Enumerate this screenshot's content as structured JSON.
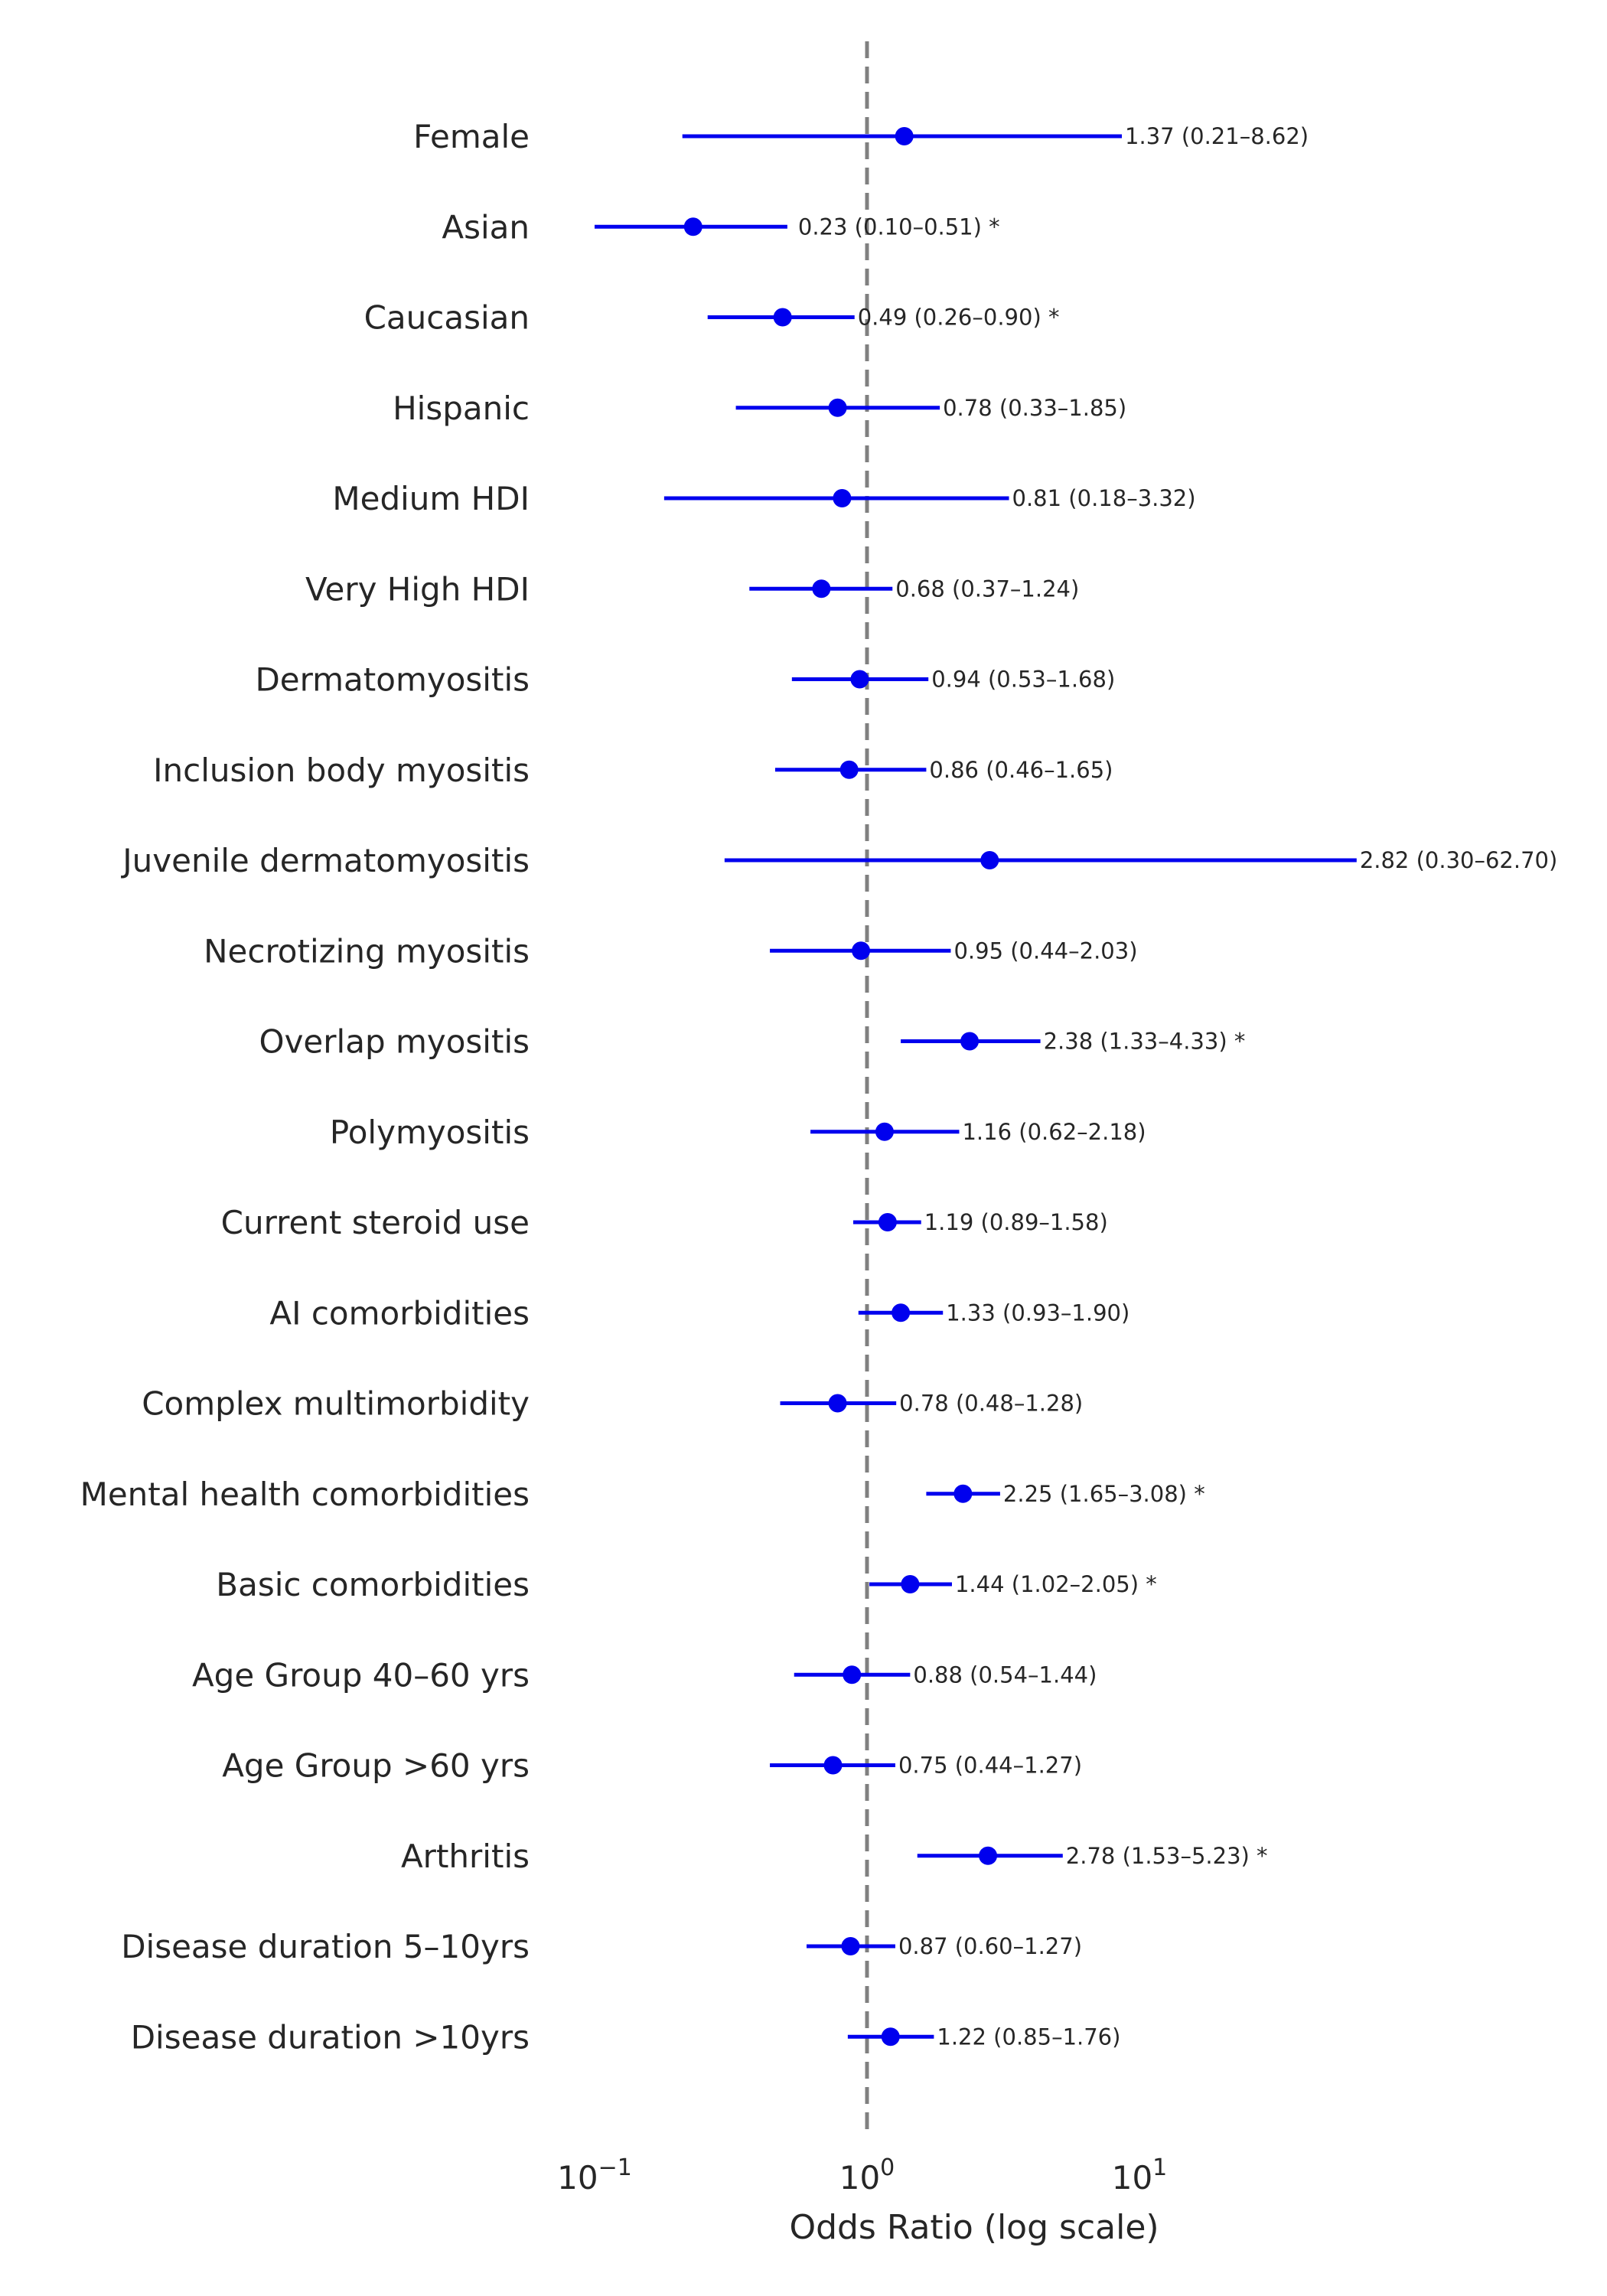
{
  "chart_data": {
    "type": "forest",
    "title": "",
    "xlabel": "Odds Ratio (log scale)",
    "ylabel": "",
    "xscale": "log",
    "xlim": [
      0.075,
      70
    ],
    "reference_line": 1,
    "grid": false,
    "legend": null,
    "colors": {
      "marker": "#0000ee",
      "reference_line": "#808080",
      "text": "#262626"
    },
    "x_ticks": [
      {
        "value": 0.1,
        "base": "10",
        "exp": "−1"
      },
      {
        "value": 1,
        "base": "10",
        "exp": "0"
      },
      {
        "value": 10,
        "base": "10",
        "exp": "1"
      }
    ],
    "rows": [
      {
        "label": "Female",
        "or": 1.37,
        "lo": 0.21,
        "hi": 8.62,
        "annotation": "1.37 (0.21–8.62)",
        "significant": false
      },
      {
        "label": "Asian",
        "or": 0.23,
        "lo": 0.1,
        "hi": 0.51,
        "annotation": "0.23 (0.10–0.51) *",
        "significant": true
      },
      {
        "label": "Caucasian",
        "or": 0.49,
        "lo": 0.26,
        "hi": 0.9,
        "annotation": "0.49 (0.26–0.90) *",
        "significant": true
      },
      {
        "label": "Hispanic",
        "or": 0.78,
        "lo": 0.33,
        "hi": 1.85,
        "annotation": "0.78 (0.33–1.85)",
        "significant": false
      },
      {
        "label": "Medium HDI",
        "or": 0.81,
        "lo": 0.18,
        "hi": 3.32,
        "annotation": "0.81 (0.18–3.32)",
        "significant": false
      },
      {
        "label": "Very High HDI",
        "or": 0.68,
        "lo": 0.37,
        "hi": 1.24,
        "annotation": "0.68 (0.37–1.24)",
        "significant": false
      },
      {
        "label": "Dermatomyositis",
        "or": 0.94,
        "lo": 0.53,
        "hi": 1.68,
        "annotation": "0.94 (0.53–1.68)",
        "significant": false
      },
      {
        "label": "Inclusion body myositis",
        "or": 0.86,
        "lo": 0.46,
        "hi": 1.65,
        "annotation": "0.86 (0.46–1.65)",
        "significant": false
      },
      {
        "label": "Juvenile dermatomyositis",
        "or": 2.82,
        "lo": 0.3,
        "hi": 62.7,
        "annotation": "2.82 (0.30–62.70)",
        "significant": false
      },
      {
        "label": "Necrotizing myositis",
        "or": 0.95,
        "lo": 0.44,
        "hi": 2.03,
        "annotation": "0.95 (0.44–2.03)",
        "significant": false
      },
      {
        "label": "Overlap myositis",
        "or": 2.38,
        "lo": 1.33,
        "hi": 4.33,
        "annotation": "2.38 (1.33–4.33) *",
        "significant": true
      },
      {
        "label": "Polymyositis",
        "or": 1.16,
        "lo": 0.62,
        "hi": 2.18,
        "annotation": "1.16 (0.62–2.18)",
        "significant": false
      },
      {
        "label": "Current steroid use",
        "or": 1.19,
        "lo": 0.89,
        "hi": 1.58,
        "annotation": "1.19 (0.89–1.58)",
        "significant": false
      },
      {
        "label": "AI comorbidities",
        "or": 1.33,
        "lo": 0.93,
        "hi": 1.9,
        "annotation": "1.33 (0.93–1.90)",
        "significant": false
      },
      {
        "label": "Complex multimorbidity",
        "or": 0.78,
        "lo": 0.48,
        "hi": 1.28,
        "annotation": "0.78 (0.48–1.28)",
        "significant": false
      },
      {
        "label": "Mental health comorbidities",
        "or": 2.25,
        "lo": 1.65,
        "hi": 3.08,
        "annotation": "2.25 (1.65–3.08) *",
        "significant": true
      },
      {
        "label": "Basic comorbidities",
        "or": 1.44,
        "lo": 1.02,
        "hi": 2.05,
        "annotation": "1.44 (1.02–2.05) *",
        "significant": true
      },
      {
        "label": "Age Group 40–60 yrs",
        "or": 0.88,
        "lo": 0.54,
        "hi": 1.44,
        "annotation": "0.88 (0.54–1.44)",
        "significant": false
      },
      {
        "label": "Age Group >60 yrs",
        "or": 0.75,
        "lo": 0.44,
        "hi": 1.27,
        "annotation": "0.75 (0.44–1.27)",
        "significant": false
      },
      {
        "label": "Arthritis",
        "or": 2.78,
        "lo": 1.53,
        "hi": 5.23,
        "annotation": "2.78 (1.53–5.23) *",
        "significant": true
      },
      {
        "label": "Disease duration 5–10yrs",
        "or": 0.87,
        "lo": 0.6,
        "hi": 1.27,
        "annotation": "0.87 (0.60–1.27)",
        "significant": false
      },
      {
        "label": "Disease duration >10yrs",
        "or": 1.22,
        "lo": 0.85,
        "hi": 1.76,
        "annotation": "1.22 (0.85–1.76)",
        "significant": false
      }
    ]
  }
}
